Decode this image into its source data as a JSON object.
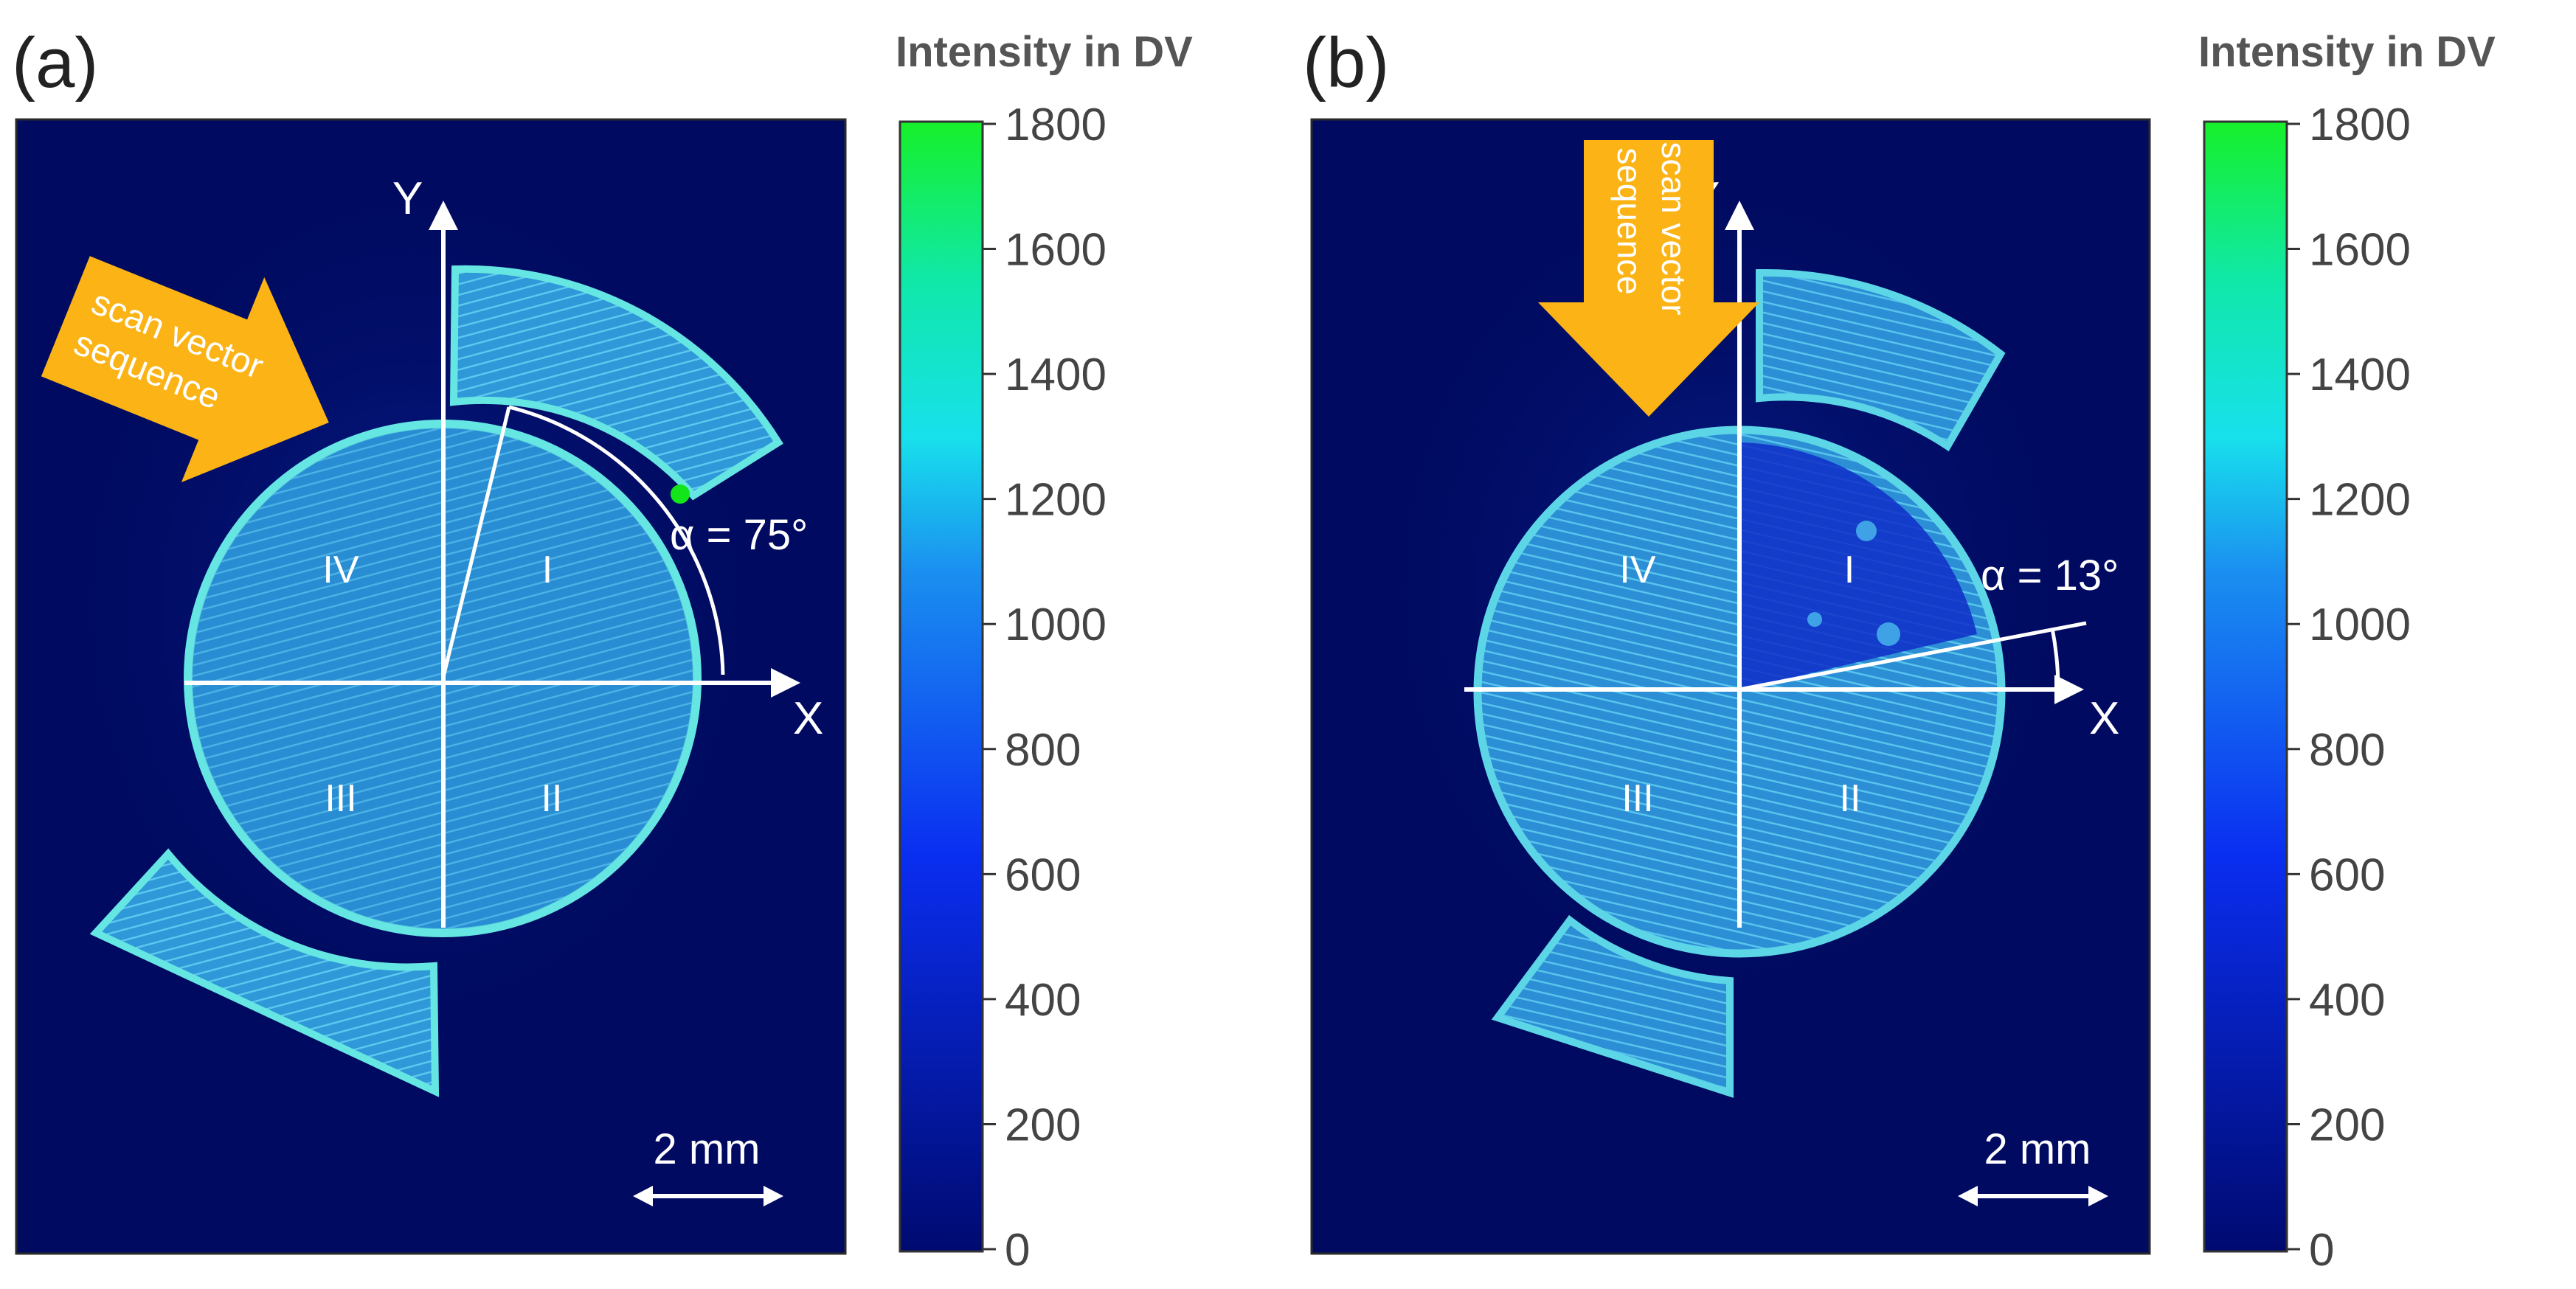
{
  "panels": [
    {
      "label": "(a)",
      "axis_x": "X",
      "axis_y": "Y",
      "quadrants": [
        "I",
        "II",
        "III",
        "IV"
      ],
      "angle_label": "α = 75°",
      "angle_deg": 75,
      "arrow_text": [
        "scan  vector",
        "sequence"
      ],
      "scale_bar": "2 mm"
    },
    {
      "label": "(b)",
      "axis_x": "X",
      "axis_y": "Y",
      "quadrants": [
        "I",
        "II",
        "III",
        "IV"
      ],
      "angle_label": "α = 13°",
      "angle_deg": 13,
      "arrow_text": [
        "scan  vector",
        "sequence"
      ],
      "scale_bar": "2 mm"
    }
  ],
  "colorbar": {
    "title": "Intensity in DV",
    "ticks": [
      "1800",
      "1600",
      "1400",
      "1200",
      "1000",
      "800",
      "600",
      "400",
      "200",
      "0"
    ]
  },
  "colors": {
    "background": "#000a60",
    "low": "#000a80",
    "mid_blue": "#0a3cf0",
    "cyan": "#18e0e8",
    "green": "#14e41a",
    "part": "#2f9dd8",
    "part_edge": "#5fe4e0",
    "arrow": "#fbb316",
    "annotation": "#ffffff"
  }
}
